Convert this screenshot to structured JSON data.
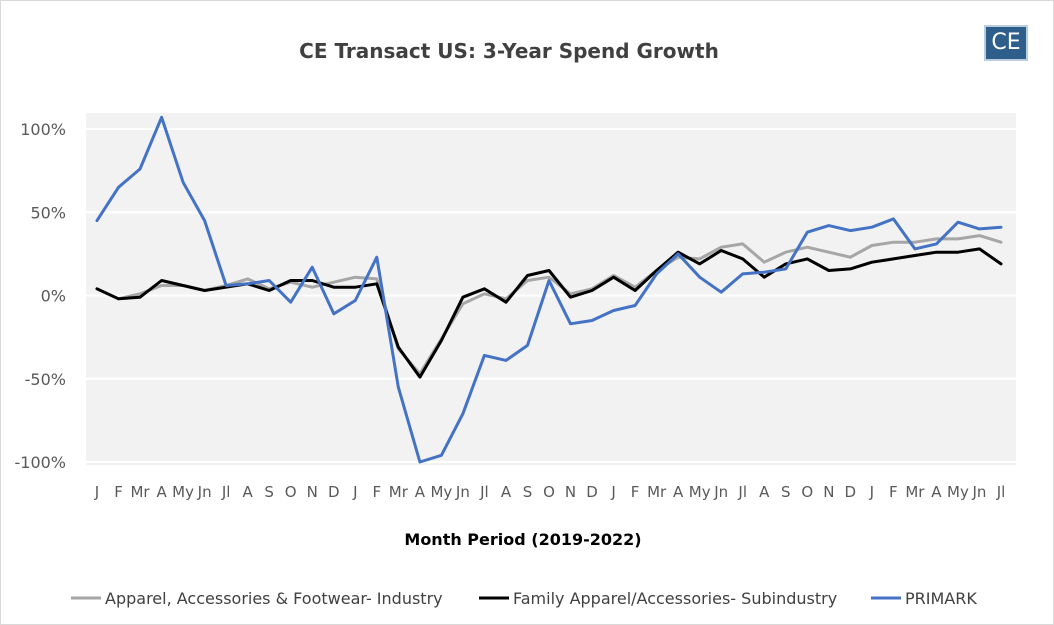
{
  "chart_data": {
    "type": "line",
    "title": "CE Transact US: 3-Year Spend Growth",
    "xlabel": "Month Period (2019-2022)",
    "ylabel": "",
    "ylim": [
      -100,
      100
    ],
    "yticks": [
      "100%",
      "50%",
      "0%",
      "-50%",
      "-100%"
    ],
    "ytick_values": [
      100,
      50,
      0,
      -50,
      -100
    ],
    "categories": [
      "J",
      "F",
      "Mr",
      "A",
      "My",
      "Jn",
      "Jl",
      "A",
      "S",
      "O",
      "N",
      "D",
      "J",
      "F",
      "Mr",
      "A",
      "My",
      "Jn",
      "Jl",
      "A",
      "S",
      "O",
      "N",
      "D",
      "J",
      "F",
      "Mr",
      "A",
      "My",
      "Jn",
      "Jl",
      "A",
      "S",
      "O",
      "N",
      "D",
      "J",
      "F",
      "Mr",
      "A",
      "My",
      "Jn",
      "Jl"
    ],
    "grid": "horizontal",
    "legend_position": "bottom",
    "series": [
      {
        "name": "Apparel, Accessories & Footwear- Industry",
        "color": "#a6a6a6",
        "values": [
          4,
          -2,
          1,
          6,
          6,
          3,
          6,
          10,
          4,
          8,
          5,
          8,
          11,
          10,
          -32,
          -47,
          -26,
          -5,
          1,
          -2,
          9,
          11,
          1,
          4,
          12,
          5,
          15,
          23,
          22,
          29,
          31,
          20,
          26,
          29,
          26,
          23,
          30,
          32,
          32,
          34,
          34,
          36,
          32
        ]
      },
      {
        "name": "Family Apparel/Accessories- Subindustry",
        "color": "#000000",
        "values": [
          4,
          -2,
          -1,
          9,
          6,
          3,
          5,
          7,
          3,
          9,
          9,
          5,
          5,
          7,
          -31,
          -49,
          -27,
          -1,
          4,
          -4,
          12,
          15,
          -1,
          3,
          11,
          3,
          15,
          26,
          19,
          27,
          22,
          11,
          19,
          22,
          15,
          16,
          20,
          22,
          24,
          26,
          26,
          28,
          19
        ]
      },
      {
        "name": "PRIMARK",
        "color": "#4472c4",
        "values": [
          45,
          65,
          76,
          107,
          68,
          45,
          6,
          7,
          9,
          -4,
          17,
          -11,
          -3,
          23,
          -55,
          -100,
          -96,
          -71,
          -36,
          -39,
          -30,
          9,
          -17,
          -15,
          -9,
          -6,
          13,
          25,
          11,
          2,
          13,
          14,
          16,
          38,
          42,
          39,
          41,
          46,
          28,
          31,
          44,
          40,
          41
        ]
      }
    ]
  },
  "logo": {
    "text": "CE"
  }
}
